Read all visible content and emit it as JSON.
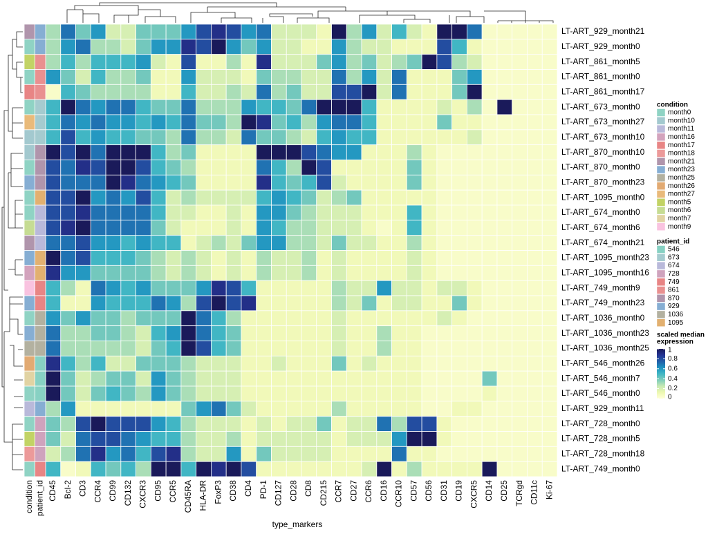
{
  "chart_data": {
    "type": "heatmap",
    "x_title": "type_markers",
    "columns": [
      "CD45",
      "Bcl-2",
      "CD3",
      "CCR4",
      "CD99",
      "CD132",
      "CXCR3",
      "CD95",
      "CCR5",
      "CD45RA",
      "HLA-DR",
      "FoxP3",
      "CD38",
      "CD4",
      "PD-1",
      "CD127",
      "CD28",
      "CD8",
      "CD215",
      "CCR7",
      "CD27",
      "CCR6",
      "CD16",
      "CCR10",
      "CD57",
      "CD56",
      "CD31",
      "CD19",
      "CXCR5",
      "CD14",
      "CD25",
      "TCRgd",
      "CD11c",
      "Ki-67"
    ],
    "rows": [
      "LT-ART_929_month21",
      "LT-ART_929_month0",
      "LT-ART_861_month5",
      "LT-ART_861_month0",
      "LT-ART_861_month17",
      "LT-ART_673_month0",
      "LT-ART_673_month27",
      "LT-ART_673_month10",
      "LT-ART_870_month10",
      "LT-ART_870_month0",
      "LT-ART_870_month23",
      "LT-ART_1095_month0",
      "LT-ART_674_month0",
      "LT-ART_674_month6",
      "LT-ART_674_month21",
      "LT-ART_1095_month23",
      "LT-ART_1095_month16",
      "LT-ART_749_month9",
      "LT-ART_749_month23",
      "LT-ART_1036_month0",
      "LT-ART_1036_month23",
      "LT-ART_1036_month25",
      "LT-ART_546_month26",
      "LT-ART_546_month7",
      "LT-ART_546_month0",
      "LT-ART_929_month11",
      "LT-ART_728_month0",
      "LT-ART_728_month5",
      "LT-ART_728_month18",
      "LT-ART_749_month0"
    ],
    "z": [
      [
        0.3,
        0.7,
        0.4,
        0.6,
        0.2,
        0.2,
        0.4,
        0.4,
        0.4,
        0.6,
        0.8,
        0.9,
        0.8,
        0.6,
        0.7,
        0.2,
        0.2,
        0.2,
        0.1,
        1.0,
        0.3,
        0.6,
        0.2,
        0.5,
        0.2,
        0.1,
        1.0,
        1.0,
        0.7,
        0.05,
        0.05,
        0.05,
        0.05,
        0.05
      ],
      [
        0.3,
        0.6,
        0.7,
        0.3,
        0.3,
        0.2,
        0.4,
        0.6,
        0.6,
        0.9,
        0.8,
        1.0,
        0.6,
        0.4,
        0.6,
        0.2,
        0.2,
        0.1,
        0.1,
        0.6,
        0.3,
        0.2,
        0.2,
        0.1,
        0.1,
        0.1,
        0.8,
        0.5,
        0.1,
        0.05,
        0.05,
        0.05,
        0.05,
        0.05
      ],
      [
        0.3,
        0.5,
        0.3,
        0.5,
        0.5,
        0.5,
        0.6,
        0.2,
        0.1,
        0.8,
        0.1,
        0.1,
        0.3,
        0.1,
        0.9,
        0.2,
        0.2,
        0.2,
        0.4,
        0.6,
        0.3,
        0.4,
        0.2,
        0.3,
        0.4,
        1.0,
        0.8,
        0.3,
        0.2,
        0.05,
        0.05,
        0.05,
        0.05,
        0.05
      ],
      [
        0.6,
        0.4,
        0.2,
        0.5,
        0.3,
        0.3,
        0.4,
        0.1,
        0.1,
        0.6,
        0.2,
        0.2,
        0.2,
        0.1,
        0.4,
        0.3,
        0.3,
        0.2,
        0.2,
        0.7,
        0.3,
        0.6,
        0.2,
        0.7,
        0.1,
        0.1,
        0.1,
        0.4,
        0.6,
        0.05,
        0.05,
        0.05,
        0.05,
        0.05
      ],
      [
        0.05,
        0.5,
        0.4,
        0.3,
        0.3,
        0.3,
        0.3,
        0.1,
        0.1,
        0.5,
        0.2,
        0.2,
        0.3,
        0.2,
        0.7,
        0.3,
        0.4,
        0.2,
        0.2,
        0.8,
        0.8,
        1.0,
        0.2,
        0.7,
        0.1,
        0.1,
        0.1,
        0.4,
        1.0,
        0.05,
        0.05,
        0.05,
        0.05,
        0.05
      ],
      [
        0.5,
        1.0,
        0.7,
        0.6,
        0.7,
        0.7,
        0.5,
        0.4,
        0.4,
        0.7,
        0.3,
        0.3,
        0.3,
        0.6,
        0.5,
        0.5,
        0.4,
        0.7,
        1.0,
        1.0,
        1.0,
        0.5,
        0.1,
        0.1,
        0.1,
        0.1,
        0.2,
        0.1,
        0.3,
        0.05,
        1.0,
        0.05,
        0.05,
        0.05
      ],
      [
        0.5,
        0.7,
        0.6,
        0.7,
        0.6,
        0.6,
        0.5,
        0.6,
        0.5,
        0.7,
        0.4,
        0.4,
        0.3,
        1.0,
        0.9,
        0.4,
        0.5,
        0.3,
        0.6,
        0.7,
        0.7,
        0.5,
        0.1,
        0.1,
        0.1,
        0.1,
        0.4,
        0.1,
        0.1,
        0.05,
        0.05,
        0.05,
        0.05,
        0.05
      ],
      [
        0.5,
        0.8,
        0.5,
        0.6,
        0.5,
        0.5,
        0.4,
        0.4,
        0.3,
        0.7,
        0.3,
        0.3,
        0.2,
        0.7,
        0.4,
        0.4,
        0.3,
        0.2,
        0.5,
        0.6,
        0.5,
        0.5,
        0.1,
        0.1,
        0.1,
        0.1,
        0.1,
        0.1,
        0.2,
        0.05,
        0.05,
        0.05,
        0.05,
        0.05
      ],
      [
        1.0,
        0.8,
        1.0,
        0.7,
        1.0,
        1.0,
        1.0,
        0.5,
        0.3,
        0.4,
        0.1,
        0.1,
        0.1,
        0.1,
        1.0,
        1.0,
        1.0,
        0.8,
        0.7,
        0.6,
        0.6,
        0.1,
        0.1,
        0.1,
        0.3,
        0.1,
        0.05,
        0.05,
        0.05,
        0.05,
        0.05,
        0.05,
        0.05,
        0.05
      ],
      [
        0.8,
        0.7,
        0.9,
        0.8,
        1.0,
        1.0,
        0.8,
        0.5,
        0.4,
        0.3,
        0.1,
        0.1,
        0.1,
        0.1,
        0.7,
        0.5,
        0.3,
        1.0,
        0.8,
        0.1,
        0.1,
        0.1,
        0.1,
        0.1,
        0.4,
        0.1,
        0.05,
        0.05,
        0.05,
        0.05,
        0.05,
        0.05,
        0.05,
        0.05
      ],
      [
        0.8,
        0.7,
        0.7,
        0.7,
        1.0,
        0.9,
        0.7,
        0.6,
        0.5,
        0.4,
        0.1,
        0.1,
        0.1,
        0.1,
        0.9,
        0.5,
        0.4,
        0.5,
        0.8,
        0.2,
        0.1,
        0.1,
        0.1,
        0.1,
        0.4,
        0.1,
        0.05,
        0.05,
        0.05,
        0.05,
        0.05,
        0.05,
        0.05,
        0.05
      ],
      [
        0.8,
        0.8,
        1.0,
        0.6,
        0.7,
        0.6,
        0.8,
        0.5,
        0.2,
        0.3,
        0.2,
        0.2,
        0.2,
        0.2,
        0.5,
        0.6,
        0.5,
        0.4,
        0.2,
        0.3,
        0.4,
        0.1,
        0.1,
        0.1,
        0.1,
        0.1,
        0.05,
        0.05,
        0.05,
        0.05,
        0.05,
        0.05,
        0.05,
        0.05
      ],
      [
        0.8,
        0.8,
        0.9,
        0.7,
        0.7,
        0.7,
        0.7,
        0.5,
        0.2,
        0.2,
        0.1,
        0.1,
        0.2,
        0.1,
        0.6,
        0.6,
        0.4,
        0.3,
        0.2,
        0.2,
        0.2,
        0.1,
        0.1,
        0.1,
        0.5,
        0.1,
        0.05,
        0.05,
        0.05,
        0.05,
        0.05,
        0.05,
        0.05,
        0.05
      ],
      [
        0.8,
        0.9,
        1.0,
        0.7,
        0.7,
        0.7,
        0.7,
        0.4,
        0.2,
        0.1,
        0.1,
        0.1,
        0.2,
        0.1,
        0.6,
        0.5,
        0.3,
        0.3,
        0.2,
        0.2,
        0.2,
        0.1,
        0.05,
        0.1,
        0.5,
        0.1,
        0.05,
        0.05,
        0.05,
        0.05,
        0.05,
        0.05,
        0.05,
        0.05
      ],
      [
        0.7,
        0.7,
        0.8,
        0.6,
        0.6,
        0.5,
        0.6,
        0.5,
        0.5,
        0.1,
        0.2,
        0.3,
        0.2,
        0.4,
        0.6,
        0.6,
        0.3,
        0.3,
        0.2,
        0.4,
        0.2,
        0.2,
        0.1,
        0.1,
        0.3,
        0.1,
        0.05,
        0.05,
        0.05,
        0.05,
        0.05,
        0.05,
        0.05,
        0.05
      ],
      [
        1.0,
        0.7,
        0.8,
        0.5,
        0.5,
        0.5,
        0.4,
        0.3,
        0.2,
        0.3,
        0.2,
        0.1,
        0.2,
        0.1,
        0.3,
        0.2,
        0.2,
        0.3,
        0.1,
        0.2,
        0.1,
        0.1,
        0.1,
        0.1,
        0.2,
        0.1,
        0.05,
        0.05,
        0.05,
        0.05,
        0.05,
        0.05,
        0.05,
        0.05
      ],
      [
        0.9,
        0.6,
        0.6,
        0.4,
        0.4,
        0.4,
        0.4,
        0.3,
        0.2,
        0.3,
        0.2,
        0.1,
        0.2,
        0.1,
        0.3,
        0.2,
        0.2,
        0.3,
        0.1,
        0.2,
        0.1,
        0.1,
        0.1,
        0.1,
        0.2,
        0.1,
        0.05,
        0.05,
        0.05,
        0.05,
        0.05,
        0.05,
        0.05,
        0.05
      ],
      [
        0.5,
        0.3,
        0.1,
        0.7,
        0.6,
        0.5,
        0.6,
        0.4,
        0.4,
        0.4,
        0.6,
        0.9,
        0.8,
        0.5,
        0.1,
        0.1,
        0.1,
        0.1,
        0.1,
        0.3,
        0.2,
        0.2,
        0.6,
        0.2,
        0.2,
        0.1,
        0.2,
        0.2,
        0.1,
        0.05,
        0.05,
        0.05,
        0.05,
        0.05
      ],
      [
        0.5,
        0.1,
        0.1,
        0.6,
        0.5,
        0.5,
        0.5,
        0.7,
        0.6,
        0.3,
        0.8,
        1.0,
        0.8,
        0.9,
        0.1,
        0.1,
        0.1,
        0.1,
        0.1,
        0.3,
        0.2,
        0.4,
        0.1,
        0.2,
        0.2,
        0.1,
        0.1,
        0.4,
        0.1,
        0.05,
        0.05,
        0.05,
        0.05,
        0.05
      ],
      [
        0.6,
        0.4,
        0.6,
        0.4,
        0.4,
        0.3,
        0.4,
        0.4,
        0.4,
        1.0,
        0.7,
        0.5,
        0.3,
        0.1,
        0.1,
        0.1,
        0.1,
        0.1,
        0.1,
        0.2,
        0.1,
        0.1,
        0.1,
        0.1,
        0.1,
        0.1,
        0.2,
        0.1,
        0.05,
        0.05,
        0.05,
        0.05,
        0.05,
        0.05
      ],
      [
        0.7,
        0.3,
        0.3,
        0.4,
        0.4,
        0.3,
        0.2,
        0.5,
        0.6,
        1.0,
        0.7,
        0.5,
        0.4,
        0.1,
        0.1,
        0.1,
        0.1,
        0.1,
        0.1,
        0.2,
        0.1,
        0.1,
        0.3,
        0.1,
        0.1,
        0.05,
        0.05,
        0.05,
        0.05,
        0.05,
        0.05,
        0.05,
        0.05,
        0.05
      ],
      [
        0.7,
        0.3,
        0.3,
        0.3,
        0.3,
        0.3,
        0.2,
        0.4,
        0.5,
        1.0,
        0.8,
        0.5,
        0.4,
        0.1,
        0.1,
        0.1,
        0.1,
        0.1,
        0.1,
        0.2,
        0.1,
        0.1,
        0.3,
        0.1,
        0.1,
        0.05,
        0.05,
        0.05,
        0.05,
        0.05,
        0.05,
        0.05,
        0.05,
        0.05
      ],
      [
        0.9,
        0.5,
        0.3,
        0.5,
        0.2,
        0.2,
        0.4,
        0.4,
        0.4,
        0.3,
        0.2,
        0.2,
        0.2,
        0.1,
        0.1,
        0.2,
        0.1,
        0.1,
        0.1,
        0.4,
        0.1,
        0.2,
        0.1,
        0.1,
        0.1,
        0.05,
        0.05,
        0.05,
        0.05,
        0.05,
        0.05,
        0.05,
        0.05,
        0.05
      ],
      [
        1.0,
        0.4,
        0.2,
        0.3,
        0.4,
        0.4,
        0.2,
        0.6,
        0.4,
        0.3,
        0.2,
        0.2,
        0.2,
        0.1,
        0.1,
        0.1,
        0.1,
        0.1,
        0.1,
        0.1,
        0.1,
        0.1,
        0.1,
        0.1,
        0.1,
        0.05,
        0.05,
        0.05,
        0.05,
        0.4,
        0.05,
        0.05,
        0.05,
        0.05
      ],
      [
        1.0,
        0.4,
        0.2,
        0.4,
        0.5,
        0.4,
        0.3,
        0.6,
        0.4,
        0.3,
        0.2,
        0.2,
        0.2,
        0.1,
        0.1,
        0.1,
        0.1,
        0.1,
        0.1,
        0.1,
        0.1,
        0.1,
        0.1,
        0.1,
        0.1,
        0.05,
        0.05,
        0.05,
        0.05,
        0.1,
        0.05,
        0.05,
        0.05,
        0.05
      ],
      [
        0.3,
        0.6,
        0.1,
        0.1,
        0.1,
        0.1,
        0.1,
        0.1,
        0.1,
        0.4,
        0.6,
        0.7,
        0.4,
        0.2,
        0.1,
        0.1,
        0.1,
        0.1,
        0.1,
        0.3,
        0.1,
        0.1,
        0.1,
        0.1,
        0.1,
        0.05,
        0.05,
        0.1,
        0.1,
        0.05,
        0.05,
        0.05,
        0.05,
        0.05
      ],
      [
        0.4,
        0.3,
        0.8,
        1.0,
        0.8,
        0.8,
        0.8,
        0.6,
        0.5,
        0.3,
        0.2,
        0.2,
        0.2,
        0.1,
        0.2,
        0.1,
        0.2,
        0.2,
        0.4,
        0.1,
        0.2,
        0.2,
        0.7,
        0.3,
        0.8,
        0.8,
        0.1,
        0.05,
        0.05,
        0.05,
        0.05,
        0.05,
        0.05,
        0.05
      ],
      [
        0.4,
        0.2,
        0.7,
        0.8,
        0.8,
        0.7,
        0.6,
        0.5,
        0.5,
        0.3,
        0.2,
        0.2,
        0.3,
        0.1,
        0.2,
        0.2,
        0.2,
        0.2,
        0.2,
        0.1,
        0.2,
        0.2,
        0.2,
        0.6,
        1.0,
        1.0,
        0.1,
        0.05,
        0.05,
        0.05,
        0.05,
        0.05,
        0.05,
        0.05
      ],
      [
        0.2,
        0.3,
        0.7,
        0.9,
        0.6,
        0.7,
        0.5,
        0.8,
        0.9,
        0.3,
        0.2,
        0.2,
        0.6,
        0.1,
        0.4,
        0.2,
        0.2,
        0.2,
        0.2,
        0.1,
        0.1,
        0.1,
        0.1,
        0.7,
        0.1,
        0.1,
        0.05,
        0.05,
        0.05,
        0.05,
        0.05,
        0.05,
        0.05,
        0.05
      ],
      [
        0.5,
        0.05,
        0.1,
        0.5,
        0.4,
        0.5,
        0.3,
        1.0,
        1.0,
        0.5,
        1.0,
        0.9,
        1.0,
        0.8,
        0.1,
        0.1,
        0.1,
        0.1,
        0.1,
        0.1,
        0.1,
        0.2,
        1.0,
        0.1,
        0.3,
        0.1,
        0.1,
        0.1,
        0.1,
        1.0,
        0.05,
        0.05,
        0.05,
        0.05
      ]
    ],
    "zlim": [
      0,
      1
    ],
    "zticks": [
      0,
      0.2,
      0.4,
      0.6,
      0.8,
      1
    ],
    "colorscale": [
      "#ffffd9",
      "#edf8b1",
      "#c7e9b4",
      "#7fcdbb",
      "#41b6c4",
      "#1d91c0",
      "#225ea8",
      "#253494",
      "#1a1a5a"
    ],
    "colorbar_title": [
      "scaled median",
      "expression"
    ],
    "annotations": [
      {
        "title": "condition",
        "levels": [
          "month0",
          "month10",
          "month11",
          "month16",
          "month17",
          "month18",
          "month21",
          "month23",
          "month25",
          "month26",
          "month27",
          "month5",
          "month6",
          "month7",
          "month9"
        ],
        "colors": [
          "#8fd3c4",
          "#a3c9cf",
          "#b9b9da",
          "#d3a3bd",
          "#e88585",
          "#ec9a9a",
          "#b095ac",
          "#86aed3",
          "#b3b1a0",
          "#e2aa72",
          "#e9ba7a",
          "#c2d365",
          "#c6dc93",
          "#e1d3a3",
          "#f9c3e0"
        ],
        "rows": [
          "month21",
          "month0",
          "month5",
          "month0",
          "month17",
          "month0",
          "month27",
          "month10",
          "month10",
          "month0",
          "month23",
          "month0",
          "month0",
          "month6",
          "month21",
          "month23",
          "month16",
          "month9",
          "month23",
          "month0",
          "month23",
          "month25",
          "month26",
          "month7",
          "month0",
          "month11",
          "month0",
          "month5",
          "month18",
          "month0"
        ]
      },
      {
        "title": "patient_id",
        "levels": [
          "546",
          "673",
          "674",
          "728",
          "749",
          "861",
          "870",
          "929",
          "1036",
          "1095"
        ],
        "colors": [
          "#87d1c3",
          "#a5cbcf",
          "#b9b9da",
          "#cfa3bd",
          "#e88585",
          "#e99090",
          "#b095ac",
          "#86aed3",
          "#b3b1a0",
          "#e2b070"
        ],
        "rows": [
          "929",
          "929",
          "861",
          "861",
          "861",
          "673",
          "673",
          "673",
          "870",
          "870",
          "870",
          "1095",
          "674",
          "674",
          "674",
          "1095",
          "1095",
          "749",
          "749",
          "1036",
          "1036",
          "1036",
          "546",
          "546",
          "546",
          "929",
          "728",
          "728",
          "728",
          "749"
        ]
      }
    ]
  }
}
